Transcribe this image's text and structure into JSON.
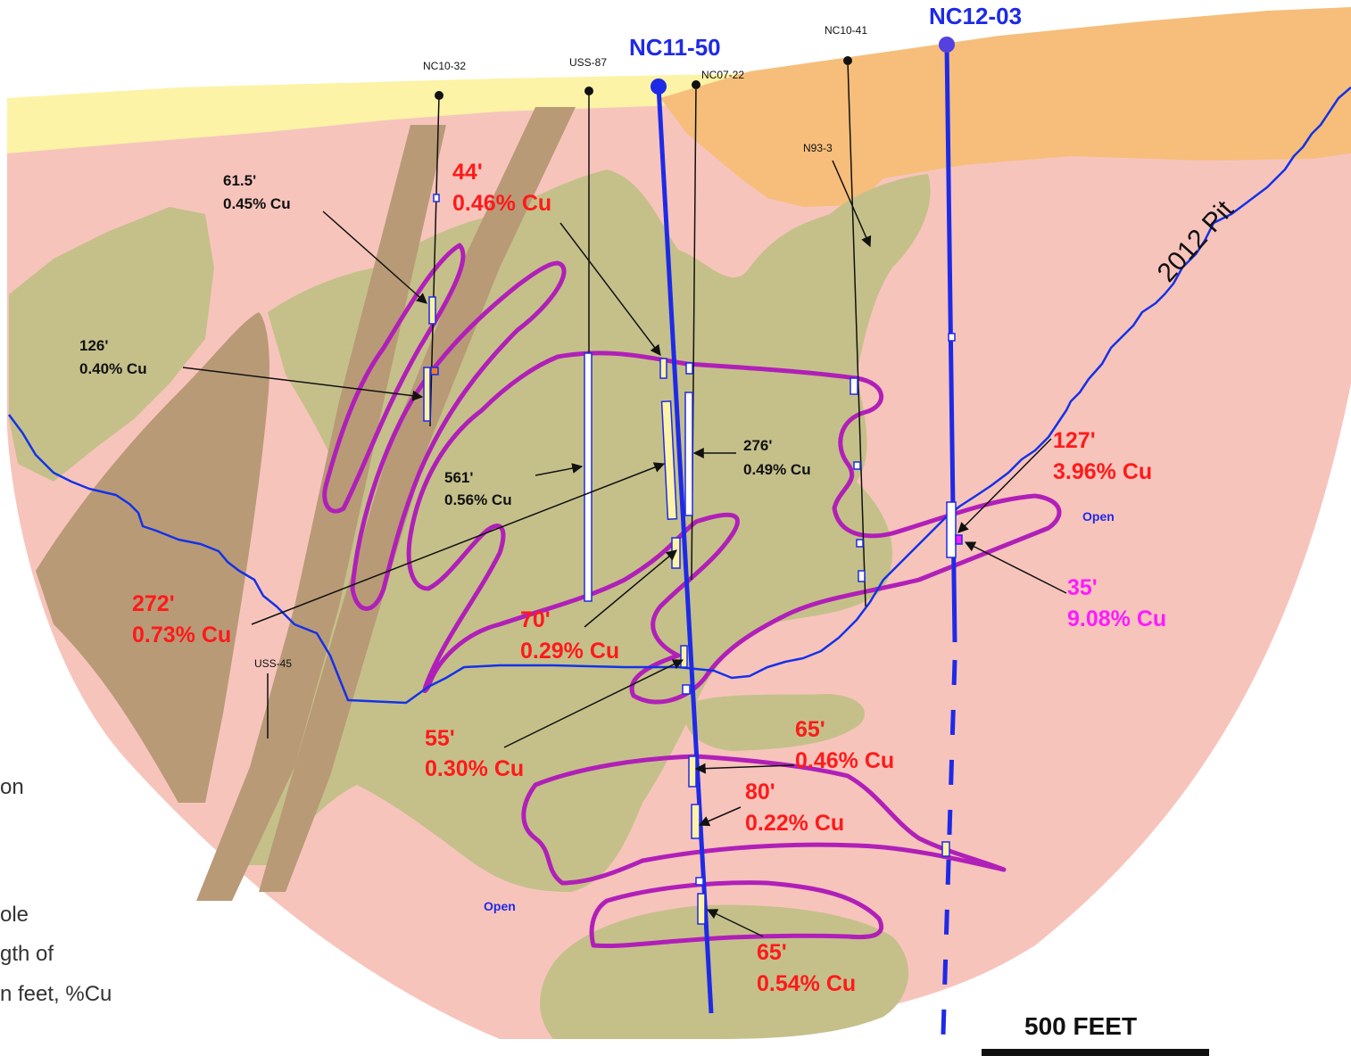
{
  "colors": {
    "background_rock": "#F7C4BC",
    "cover_yellow": "#FCF3A6",
    "cover_orange": "#F6BE7A",
    "dike_brown": "#B89A77",
    "olive_unit": "#C5C08A",
    "ore_outline": "#B020B8",
    "pit_line": "#1432E8",
    "hole_blue": "#1E2AE6",
    "red_text": "#FF1A1A",
    "magenta_text": "#FF1AFF",
    "black": "#111111"
  },
  "holes": {
    "nc10_32": "NC10-32",
    "uss_87": "USS-87",
    "nc11_50": "NC11-50",
    "nc07_22": "NC07-22",
    "nc10_41": "NC10-41",
    "nc12_03": "NC12-03",
    "n93_3": "N93-3",
    "uss_45": "USS-45"
  },
  "pit_label": "2012 Pit",
  "open_labels": [
    "Open",
    "Open"
  ],
  "intercepts": [
    {
      "len": "44'",
      "grade": "0.46% Cu"
    },
    {
      "len": "61.5'",
      "grade": "0.45% Cu"
    },
    {
      "len": "126'",
      "grade": "0.40% Cu"
    },
    {
      "len": "561'",
      "grade": "0.56% Cu"
    },
    {
      "len": "276'",
      "grade": "0.49% Cu"
    },
    {
      "len": "127'",
      "grade": "3.96% Cu"
    },
    {
      "len": "35'",
      "grade": "9.08% Cu"
    },
    {
      "len": "272'",
      "grade": "0.73% Cu"
    },
    {
      "len": "70'",
      "grade": "0.29% Cu"
    },
    {
      "len": "55'",
      "grade": "0.30% Cu"
    },
    {
      "len": "65'",
      "grade": "0.46% Cu"
    },
    {
      "len": "80'",
      "grade": "0.22% Cu"
    },
    {
      "len": "65'",
      "grade": "0.54% Cu"
    }
  ],
  "legend_fragments": [
    "on",
    "ole",
    "gth of",
    "n feet, %Cu"
  ],
  "scale_label": "500 FEET"
}
